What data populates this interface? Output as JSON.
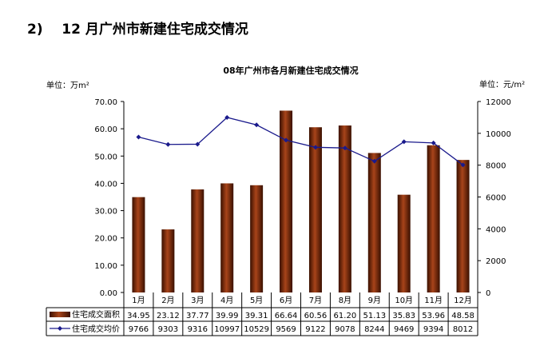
{
  "heading": "2)    12 月广州市新建住宅成交情况",
  "chart_data": {
    "type": "bar+line",
    "title": "08年广州市各月新建住宅成交情况",
    "left_unit": "单位：万m²",
    "right_unit": "单位：元/m²",
    "categories": [
      "1月",
      "2月",
      "3月",
      "4月",
      "5月",
      "6月",
      "7月",
      "8月",
      "9月",
      "10月",
      "11月",
      "12月"
    ],
    "left_ticks": [
      "0.00",
      "10.00",
      "20.00",
      "30.00",
      "40.00",
      "50.00",
      "60.00",
      "70.00"
    ],
    "right_ticks": [
      "0",
      "2000",
      "4000",
      "6000",
      "8000",
      "10000",
      "12000"
    ],
    "ylim_left": [
      0,
      70
    ],
    "ylim_right": [
      0,
      12000
    ],
    "series": [
      {
        "name": "住宅成交面积",
        "type": "bar",
        "axis": "left",
        "color": "#7a2a08",
        "values": [
          34.95,
          23.12,
          37.77,
          39.99,
          39.31,
          66.64,
          60.56,
          61.2,
          51.13,
          35.83,
          53.96,
          48.58
        ],
        "labels": [
          "34.95",
          "23.12",
          "37.77",
          "39.99",
          "39.31",
          "66.64",
          "60.56",
          "61.20",
          "51.13",
          "35.83",
          "53.96",
          "48.58"
        ]
      },
      {
        "name": "住宅成交均价",
        "type": "line",
        "axis": "right",
        "color": "#1a1a8c",
        "values": [
          9766,
          9303,
          9316,
          10997,
          10529,
          9569,
          9122,
          9078,
          8244,
          9469,
          9394,
          8012
        ],
        "labels": [
          "9766",
          "9303",
          "9316",
          "10997",
          "10529",
          "9569",
          "9122",
          "9078",
          "8244",
          "9469",
          "9394",
          "8012"
        ]
      }
    ],
    "grid": false,
    "legend": "data-table"
  }
}
